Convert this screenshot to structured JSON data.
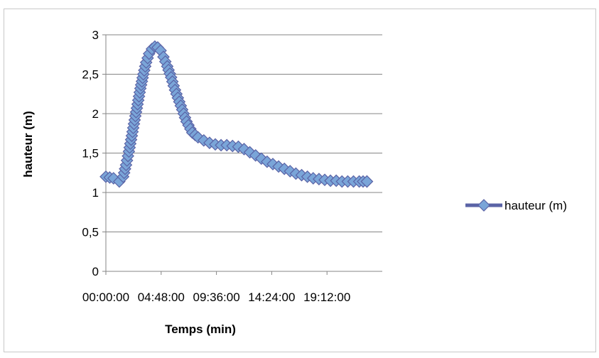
{
  "chart_data": {
    "type": "line",
    "title": "",
    "xlabel": "Temps (min)",
    "ylabel": "hauteur (m)",
    "x_tick_labels": [
      "00:00:00",
      "04:48:00",
      "09:36:00",
      "14:24:00",
      "19:12:00"
    ],
    "y_tick_labels": [
      "0",
      "0,5",
      "1",
      "1,5",
      "2",
      "2,5",
      "3"
    ],
    "xlim": [
      "00:00:00",
      "24:00:00"
    ],
    "ylim": [
      0,
      3
    ],
    "grid": "horizontal major gridlines",
    "legend": {
      "placement": "right",
      "entries": [
        "hauteur (m)"
      ]
    },
    "series": [
      {
        "name": "hauteur (m)",
        "color": "#5a63a6",
        "marker_fill": "#7aa5d8",
        "marker": "diamond",
        "x": [
          "00:00:00",
          "00:40:00",
          "01:10:00",
          "01:30:00",
          "01:45:00",
          "02:00:00",
          "02:15:00",
          "02:30:00",
          "02:45:00",
          "03:00:00",
          "03:15:00",
          "03:30:00",
          "03:45:00",
          "04:00:00",
          "04:15:00",
          "04:30:00",
          "04:45:00",
          "05:00:00",
          "05:20:00",
          "05:40:00",
          "06:00:00",
          "06:30:00",
          "07:00:00",
          "07:30:00",
          "08:00:00",
          "08:30:00",
          "09:00:00",
          "09:30:00",
          "10:00:00",
          "10:30:00",
          "11:00:00",
          "11:30:00",
          "12:00:00",
          "12:30:00",
          "13:00:00",
          "13:30:00",
          "14:00:00",
          "14:30:00",
          "15:00:00",
          "15:30:00",
          "16:00:00",
          "16:30:00",
          "17:00:00",
          "17:30:00",
          "18:00:00",
          "18:30:00",
          "19:00:00",
          "19:30:00",
          "20:00:00",
          "20:30:00",
          "21:00:00",
          "21:30:00",
          "22:00:00",
          "22:40:00"
        ],
        "y": [
          1.2,
          1.18,
          1.14,
          1.2,
          1.35,
          1.52,
          1.72,
          1.92,
          2.12,
          2.32,
          2.5,
          2.65,
          2.76,
          2.82,
          2.85,
          2.84,
          2.8,
          2.72,
          2.6,
          2.46,
          2.3,
          2.1,
          1.9,
          1.76,
          1.7,
          1.66,
          1.63,
          1.61,
          1.6,
          1.6,
          1.59,
          1.58,
          1.55,
          1.51,
          1.47,
          1.43,
          1.39,
          1.36,
          1.33,
          1.3,
          1.27,
          1.24,
          1.22,
          1.2,
          1.18,
          1.17,
          1.16,
          1.15,
          1.15,
          1.14,
          1.14,
          1.14,
          1.14,
          1.14
        ]
      }
    ]
  }
}
